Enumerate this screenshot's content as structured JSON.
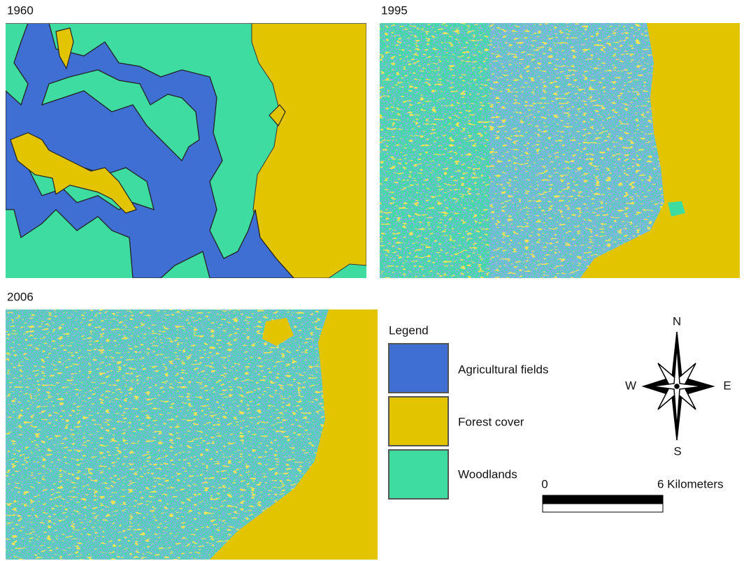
{
  "panels": [
    {
      "label": "1960"
    },
    {
      "label": "1995"
    },
    {
      "label": "2006"
    }
  ],
  "legend": {
    "title": "Legend",
    "items": [
      {
        "label": "Agricultural fields",
        "color": "#3f6fd2"
      },
      {
        "label": "Forest cover",
        "color": "#e2c500"
      },
      {
        "label": "Woodlands",
        "color": "#3fdca2"
      }
    ]
  },
  "compass": {
    "north": "N",
    "west": "W",
    "east": "E",
    "south": "S"
  },
  "scale": {
    "start": "0",
    "end": "6 Kilometers"
  }
}
